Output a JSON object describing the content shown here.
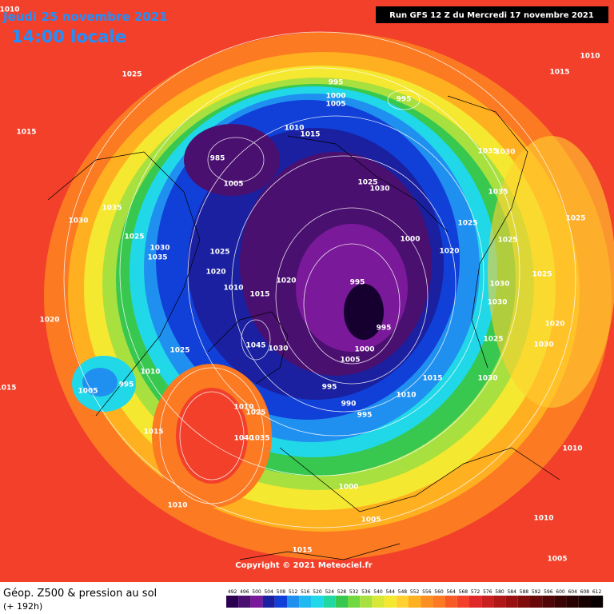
{
  "header": {
    "date": "Jeudi 25 novembre 2021",
    "time": "14:00 locale",
    "run": "Run GFS 12 Z du Mercredi 17 novembre 2021"
  },
  "footer": {
    "title": "Géop. Z500 & pression au sol",
    "lead": "(+ 192h)",
    "copyright": "Copyright © 2021 Meteociel.fr"
  },
  "scale_labels": [
    492,
    496,
    500,
    504,
    508,
    512,
    516,
    520,
    524,
    528,
    532,
    536,
    540,
    544,
    548,
    552,
    556,
    560,
    564,
    568,
    572,
    576,
    580,
    584,
    588,
    592,
    596,
    600,
    604,
    608,
    612
  ],
  "isobar_labels": [
    1010,
    1025,
    1015,
    995,
    1000,
    1005,
    995,
    1010,
    1015,
    985,
    1005,
    1025,
    1030,
    1035,
    1030,
    1025,
    1030,
    1035,
    1025,
    1020,
    1010,
    1015,
    1020,
    1000,
    995,
    995,
    1000,
    1005,
    1045,
    1030,
    1020,
    1025,
    1010,
    995,
    1005,
    1015,
    1010,
    1025,
    1040,
    1035,
    995,
    990,
    995,
    1010,
    1015,
    1030,
    1025,
    1020,
    1025,
    1035,
    1035,
    1030,
    1010,
    1015,
    1025,
    1025,
    1025,
    1030,
    1030,
    1020,
    1030,
    1010,
    1010,
    1005,
    1000,
    1005,
    1010,
    1015,
    1015
  ]
}
